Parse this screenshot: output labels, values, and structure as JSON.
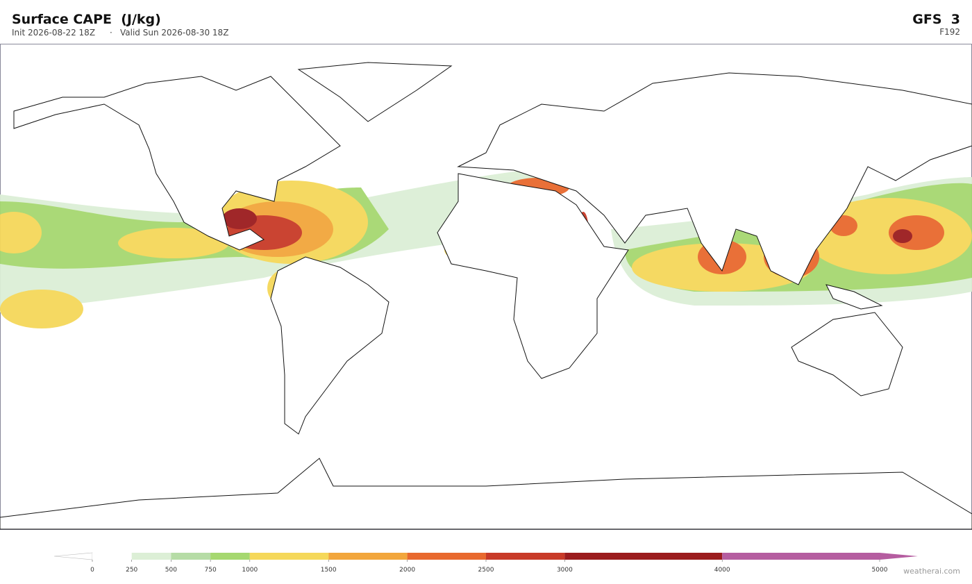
{
  "header": {
    "title": "Surface CAPE  (J/kg)",
    "init": "Init 2026-08-22 18Z",
    "separator": "·",
    "valid": "Valid Sun 2026-08-30 18Z",
    "model": "GFS  3",
    "forecast_hour": "F192"
  },
  "chart_data": {
    "type": "colorbar",
    "xlim": [
      0,
      5000
    ],
    "xticks": [
      0,
      250,
      500,
      750,
      1000,
      1500,
      2000,
      2500,
      3000,
      4000,
      5000
    ],
    "bins": [
      0,
      250,
      500,
      750,
      1000,
      1500,
      2000,
      2500,
      3000,
      4000,
      5000
    ],
    "colors": [
      "#ffffff",
      "#dcefd6",
      "#b6dca6",
      "#a6d870",
      "#f5d85a",
      "#f2a63c",
      "#e8692e",
      "#c83a28",
      "#9b1c1e",
      "#b55da0"
    ],
    "under_color": "#ffffff",
    "over_color": "#b55da0"
  },
  "footer": {
    "credit": "weatherai.com"
  }
}
